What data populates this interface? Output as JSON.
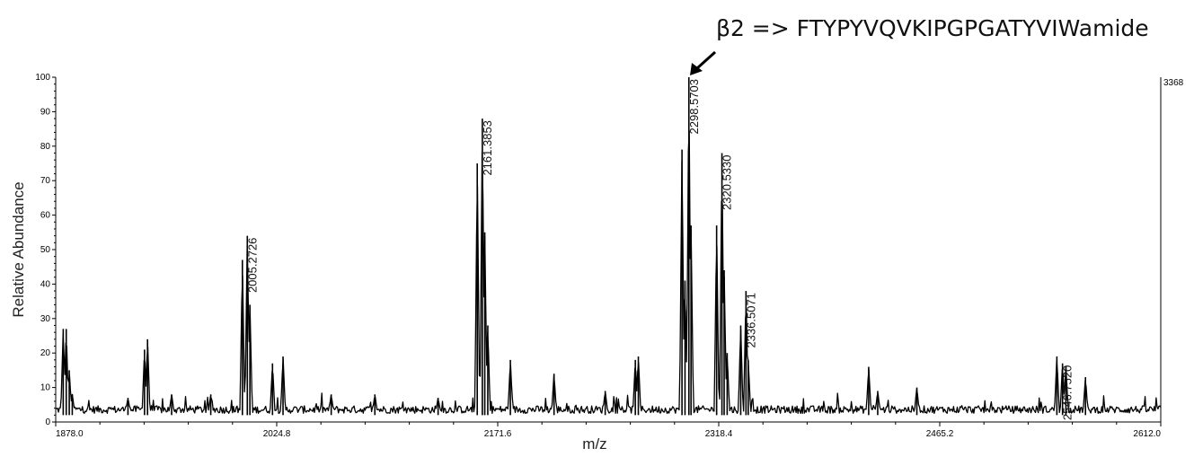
{
  "chart_data": {
    "type": "line",
    "title": "",
    "annotation": "β2 => FTYPYVQVKIPGPGATYVIWamide",
    "xlabel": "m/z",
    "ylabel": "Relative Abundance",
    "xlim": [
      1878.0,
      2612.0
    ],
    "ylim": [
      0,
      100
    ],
    "x_ticks": [
      "1878.0",
      "2024.8",
      "2171.6",
      "2318.4",
      "2465.2",
      "2612.0"
    ],
    "y_ticks": [
      "0",
      "10",
      "20",
      "30",
      "40",
      "50",
      "60",
      "70",
      "80",
      "90",
      "100"
    ],
    "max_intensity": "3368",
    "series": [
      {
        "peaks": [
          {
            "x": 1883.0,
            "y": 27
          },
          {
            "x": 1885.0,
            "y": 27
          },
          {
            "x": 1887.0,
            "y": 15
          },
          {
            "x": 1889.0,
            "y": 8
          },
          {
            "x": 1926.0,
            "y": 7
          },
          {
            "x": 1937.0,
            "y": 21
          },
          {
            "x": 1939.0,
            "y": 24
          },
          {
            "x": 1955.0,
            "y": 8
          },
          {
            "x": 1981.0,
            "y": 8
          },
          {
            "x": 2002.0,
            "y": 47
          },
          {
            "x": 2005.2726,
            "y": 54
          },
          {
            "x": 2007.0,
            "y": 34
          },
          {
            "x": 2022.0,
            "y": 17
          },
          {
            "x": 2029.0,
            "y": 19
          },
          {
            "x": 2061.0,
            "y": 8
          },
          {
            "x": 2090.0,
            "y": 8
          },
          {
            "x": 2132.0,
            "y": 7
          },
          {
            "x": 2158.0,
            "y": 75
          },
          {
            "x": 2161.3853,
            "y": 88
          },
          {
            "x": 2163.0,
            "y": 55
          },
          {
            "x": 2165.0,
            "y": 28
          },
          {
            "x": 2180.0,
            "y": 18
          },
          {
            "x": 2209.0,
            "y": 14
          },
          {
            "x": 2243.0,
            "y": 9
          },
          {
            "x": 2263.0,
            "y": 18
          },
          {
            "x": 2265.0,
            "y": 19
          },
          {
            "x": 2294.0,
            "y": 79
          },
          {
            "x": 2296.0,
            "y": 41
          },
          {
            "x": 2298.5703,
            "y": 100
          },
          {
            "x": 2300.0,
            "y": 57
          },
          {
            "x": 2317.0,
            "y": 57
          },
          {
            "x": 2320.533,
            "y": 78
          },
          {
            "x": 2322.0,
            "y": 44
          },
          {
            "x": 2324.0,
            "y": 20
          },
          {
            "x": 2333.0,
            "y": 28
          },
          {
            "x": 2336.5071,
            "y": 38
          },
          {
            "x": 2338.0,
            "y": 18
          },
          {
            "x": 2418.0,
            "y": 16
          },
          {
            "x": 2424.0,
            "y": 9
          },
          {
            "x": 2450.0,
            "y": 10
          },
          {
            "x": 2543.0,
            "y": 19
          },
          {
            "x": 2546.752,
            "y": 17
          },
          {
            "x": 2549.0,
            "y": 16
          },
          {
            "x": 2562.0,
            "y": 13
          }
        ]
      }
    ],
    "peak_labels": [
      {
        "x": 2005.2726,
        "y": 54,
        "text": "2005.2726"
      },
      {
        "x": 2161.3853,
        "y": 88,
        "text": "2161.3853"
      },
      {
        "x": 2298.5703,
        "y": 100,
        "text": "2298.5703"
      },
      {
        "x": 2320.533,
        "y": 78,
        "text": "2320.5330"
      },
      {
        "x": 2336.5071,
        "y": 38,
        "text": "2336.5071"
      },
      {
        "x": 2546.752,
        "y": 17,
        "text": "2546.7520"
      }
    ],
    "grid": false,
    "colors": {
      "trace": "#000000"
    }
  }
}
